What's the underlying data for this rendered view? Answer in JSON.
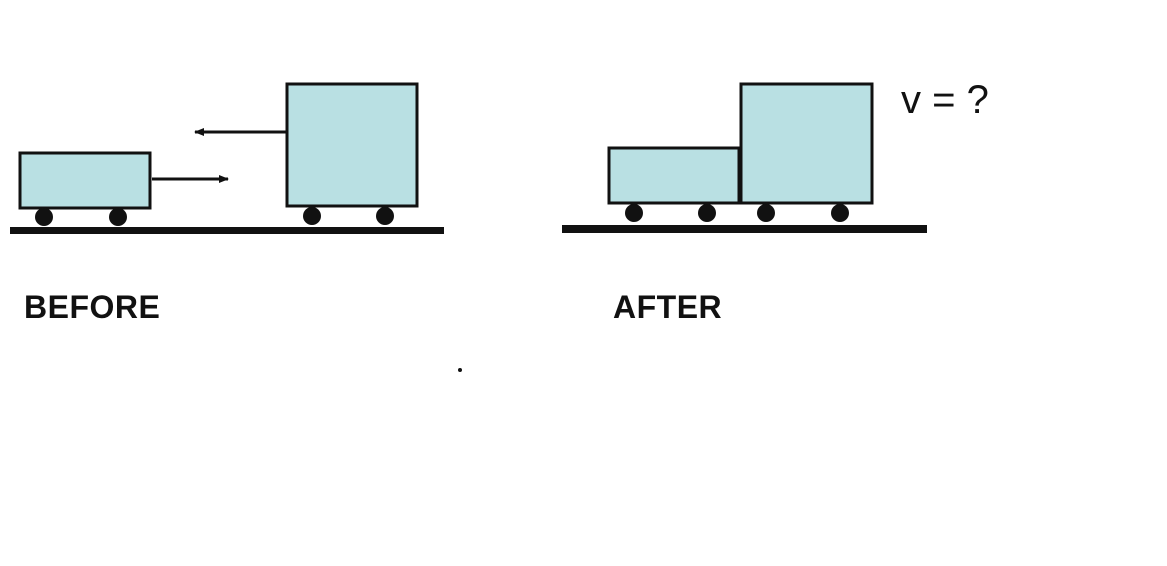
{
  "colors": {
    "cart_fill": "#b9e0e3",
    "outline": "#111111",
    "ground": "#111111",
    "wheel": "#111111",
    "background": "#ffffff"
  },
  "before": {
    "label": "BEFORE",
    "small_cart": {
      "direction": "right"
    },
    "large_cart": {
      "direction": "left"
    }
  },
  "after": {
    "label": "AFTER",
    "velocity_label": "v = ?",
    "state": "carts coupled"
  }
}
